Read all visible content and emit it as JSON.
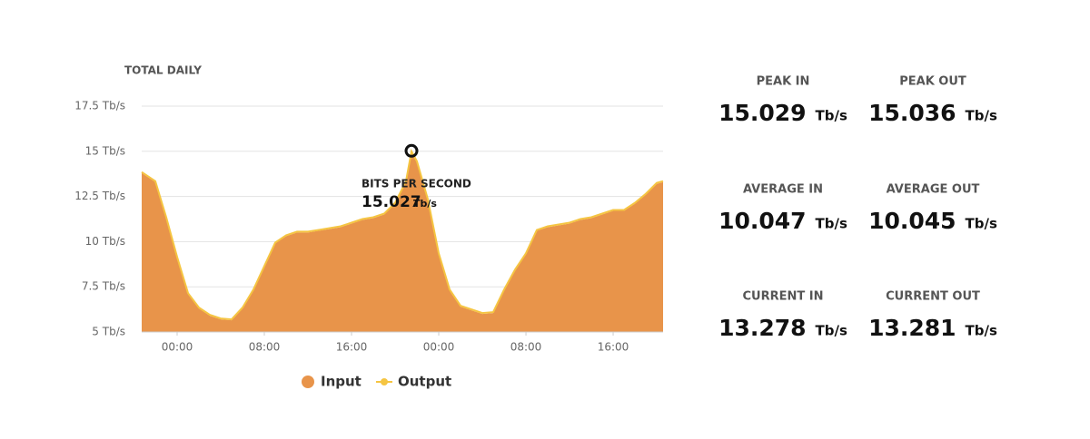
{
  "chart_data": {
    "type": "area",
    "title": "TOTAL DAILY",
    "x": [
      -3.25,
      -2,
      -1,
      0,
      1,
      2,
      3,
      4,
      5,
      6,
      7,
      8,
      9,
      10,
      11,
      12,
      13,
      14,
      15,
      16,
      17,
      18,
      19,
      20,
      21,
      21.5,
      22,
      23,
      24,
      25,
      26,
      27,
      28,
      29,
      30,
      31,
      32,
      33,
      34,
      35,
      36,
      37,
      38,
      39,
      40,
      41,
      42,
      43,
      44,
      44.58
    ],
    "series": [
      {
        "name": "Input",
        "color": "#e8944a",
        "values": [
          13.8,
          13.3,
          11.3,
          9.1,
          7.1,
          6.3,
          5.9,
          5.7,
          5.65,
          6.3,
          7.3,
          8.6,
          9.9,
          10.3,
          10.5,
          10.5,
          10.6,
          10.7,
          10.8,
          11.0,
          11.2,
          11.3,
          11.5,
          12.1,
          13.3,
          14.9,
          14.4,
          12.3,
          9.3,
          7.3,
          6.4,
          6.2,
          6.0,
          6.05,
          7.3,
          8.4,
          9.3,
          10.6,
          10.8,
          10.9,
          11.0,
          11.2,
          11.3,
          11.5,
          11.7,
          11.7,
          12.1,
          12.6,
          13.2,
          13.3
        ]
      },
      {
        "name": "Output",
        "color": "#f5c542",
        "values": [
          13.85,
          13.35,
          11.35,
          9.15,
          7.15,
          6.35,
          5.95,
          5.75,
          5.7,
          6.35,
          7.35,
          8.65,
          9.95,
          10.35,
          10.55,
          10.55,
          10.65,
          10.75,
          10.85,
          11.05,
          11.25,
          11.35,
          11.55,
          12.15,
          13.35,
          15.0,
          14.45,
          12.35,
          9.35,
          7.35,
          6.45,
          6.25,
          6.05,
          6.1,
          7.35,
          8.45,
          9.35,
          10.65,
          10.85,
          10.95,
          11.05,
          11.25,
          11.35,
          11.55,
          11.75,
          11.75,
          12.15,
          12.65,
          13.25,
          13.35
        ]
      }
    ],
    "xlim": [
      -3.25,
      44.58
    ],
    "xticks": [
      {
        "value": 0,
        "label": "00:00"
      },
      {
        "value": 8,
        "label": "08:00"
      },
      {
        "value": 16,
        "label": "16:00"
      },
      {
        "value": 24,
        "label": "00:00"
      },
      {
        "value": 32,
        "label": "08:00"
      },
      {
        "value": 40,
        "label": "16:00"
      }
    ],
    "ylim": [
      5,
      17.5
    ],
    "yticks": [
      {
        "value": 5,
        "label": "5 Tb/s"
      },
      {
        "value": 7.5,
        "label": "7.5 Tb/s"
      },
      {
        "value": 10,
        "label": "10 Tb/s"
      },
      {
        "value": 12.5,
        "label": "12.5 Tb/s"
      },
      {
        "value": 15,
        "label": "15 Tb/s"
      },
      {
        "value": 17.5,
        "label": "17.5 Tb/s"
      }
    ],
    "grid": true,
    "legend": "bottom",
    "annotation": {
      "label": "BITS PER SECOND",
      "x": 21.5,
      "value": 15.027,
      "unit": "Tb/s"
    }
  },
  "stats": [
    {
      "label": "PEAK IN",
      "value": 15.029,
      "unit": "Tb/s"
    },
    {
      "label": "PEAK OUT",
      "value": 15.036,
      "unit": "Tb/s"
    },
    {
      "label": "AVERAGE IN",
      "value": 10.047,
      "unit": "Tb/s"
    },
    {
      "label": "AVERAGE OUT",
      "value": 10.045,
      "unit": "Tb/s"
    },
    {
      "label": "CURRENT IN",
      "value": 13.278,
      "unit": "Tb/s"
    },
    {
      "label": "CURRENT OUT",
      "value": 13.281,
      "unit": "Tb/s"
    }
  ]
}
